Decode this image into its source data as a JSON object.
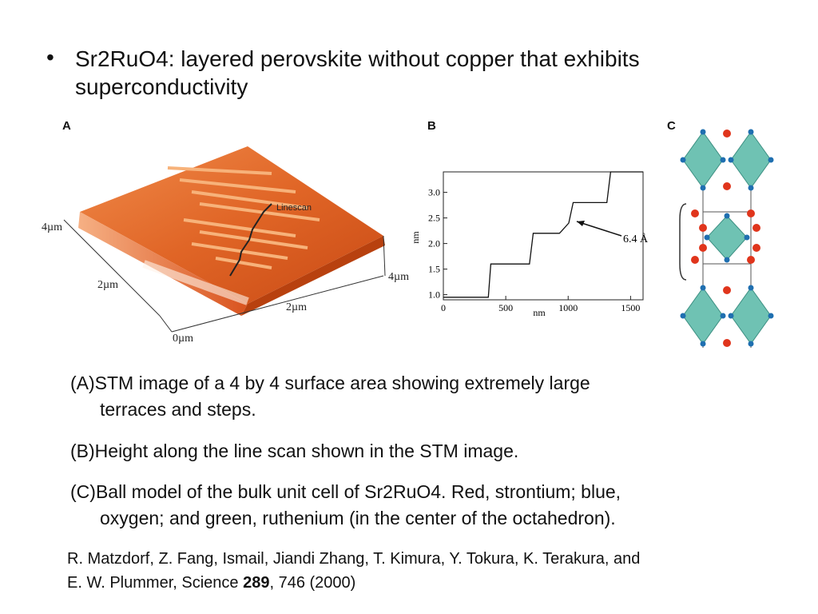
{
  "bullet": {
    "marker": "•",
    "text_line1": "Sr2RuO4: layered perovskite without copper that exhibits",
    "text_line2": "superconductivity"
  },
  "panel_a": {
    "label": "A",
    "annotation": "Linescan",
    "axis_labels": [
      "4µm",
      "2µm",
      "0µm",
      "2µm",
      "4µm"
    ]
  },
  "panel_b": {
    "label": "B",
    "annotation": "6.4 Å",
    "chart_data": {
      "type": "line",
      "xlabel": "nm",
      "ylabel": "nm",
      "xlim": [
        0,
        1600
      ],
      "ylim": [
        0.9,
        3.4
      ],
      "x_ticks": [
        "0",
        "500",
        "1000",
        "1500"
      ],
      "y_ticks": [
        "1.0",
        "1.5",
        "2.0",
        "2.5",
        "3.0"
      ],
      "x": [
        0,
        360,
        380,
        690,
        720,
        930,
        950,
        1005,
        1040,
        1310,
        1340,
        1600
      ],
      "y": [
        0.95,
        0.95,
        1.6,
        1.6,
        2.2,
        2.2,
        2.25,
        2.4,
        2.8,
        2.8,
        3.45,
        3.45
      ]
    }
  },
  "panel_c": {
    "label": "C"
  },
  "captions": [
    {
      "letter": "(A)",
      "line1": "STM image of a 4 by 4 surface area showing extremely large",
      "line2": "terraces and steps."
    },
    {
      "letter": "(B)",
      "line1": "Height along the line scan shown in the STM image.",
      "line2": ""
    },
    {
      "letter": "(C)",
      "line1": "Ball model of the bulk unit cell of Sr2RuO4. Red, strontium; blue,",
      "line2": "oxygen; and green, ruthenium (in the center of the octahedron)."
    }
  ],
  "reference": {
    "line1": "R. Matzdorf, Z. Fang, Ismail, Jiandi Zhang, T. Kimura, Y. Tokura, K. Terakura, and",
    "line2_pre": "E. W. Plummer, Science ",
    "volume": "289",
    "line2_post": ", 746 (2000)"
  },
  "colors": {
    "terrace": "#d9531e",
    "terrace_light": "#f08a4a",
    "octahedron": "#6fc2b3",
    "oxygen": "#1f6fb0",
    "strontium": "#e0351c"
  }
}
